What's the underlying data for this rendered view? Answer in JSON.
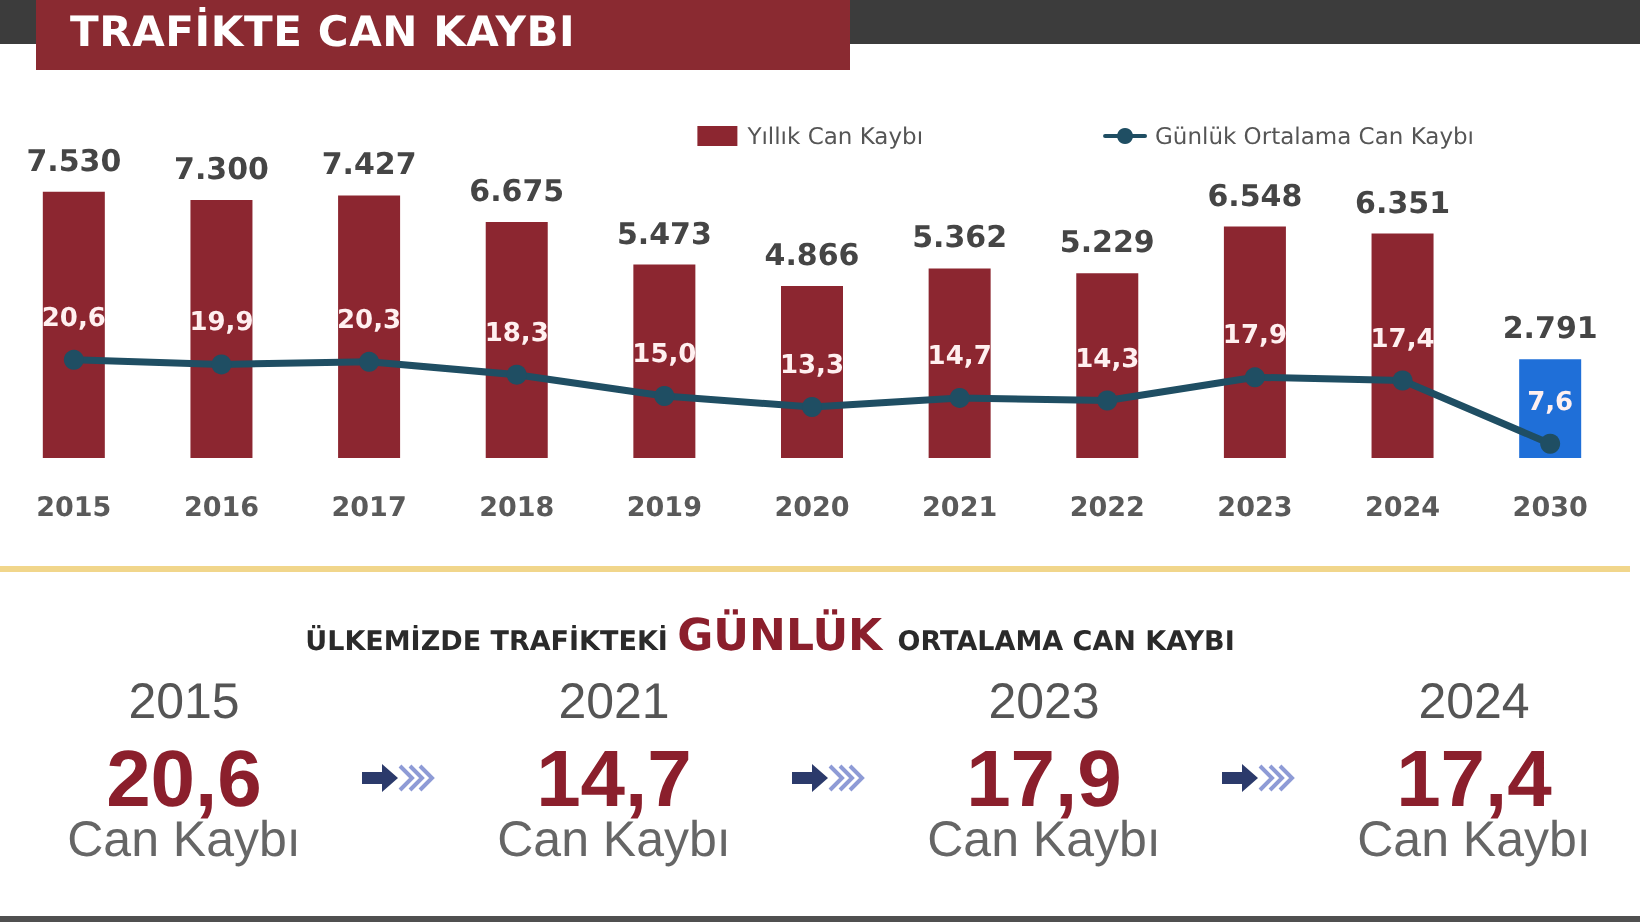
{
  "chart_data": [
    {
      "type": "bar",
      "title": "TRAFİKTE CAN KAYBI",
      "categories": [
        "2015",
        "2016",
        "2017",
        "2018",
        "2019",
        "2020",
        "2021",
        "2022",
        "2023",
        "2024",
        "2030"
      ],
      "series": [
        {
          "name": "Yıllık Can Kaybı",
          "type": "bar",
          "color": "#8c2630",
          "colors": [
            "#8c2630",
            "#8c2630",
            "#8c2630",
            "#8c2630",
            "#8c2630",
            "#8c2630",
            "#8c2630",
            "#8c2630",
            "#8c2630",
            "#8c2630",
            "#1f6fd8"
          ],
          "values": [
            7530,
            7300,
            7427,
            6675,
            5473,
            4866,
            5362,
            5229,
            6548,
            6351,
            2791
          ],
          "value_labels": [
            "7.530",
            "7.300",
            "7.427",
            "6.675",
            "5.473",
            "4.866",
            "5.362",
            "5.229",
            "6.548",
            "6.351",
            "2.791"
          ]
        },
        {
          "name": "Günlük Ortalama Can Kaybı",
          "type": "line",
          "axis": "y2",
          "color": "#1f4e63",
          "values": [
            20.6,
            19.9,
            20.3,
            18.3,
            15.0,
            13.3,
            14.7,
            14.3,
            17.9,
            17.4,
            7.6
          ],
          "value_labels": [
            "20,6",
            "19,9",
            "20,3",
            "18,3",
            "15,0",
            "13,3",
            "14,7",
            "14,3",
            "17,9",
            "17,4",
            "7,6"
          ]
        }
      ],
      "marker": "circle",
      "legend": "top right",
      "tick_labels": "x"
    },
    {
      "type": "other",
      "title": "ÜLKEMİZDE TRAFİKTEKİ GÜNLÜK ORTALAMA CAN KAYBI",
      "annotations": [
        "2015",
        "20,6",
        "Can Kaybı",
        "2021",
        "14,7",
        "Can Kaybı",
        "2023",
        "17,9",
        "Can Kaybı",
        "2024",
        "17,4",
        "Can Kaybı"
      ]
    }
  ]
}
